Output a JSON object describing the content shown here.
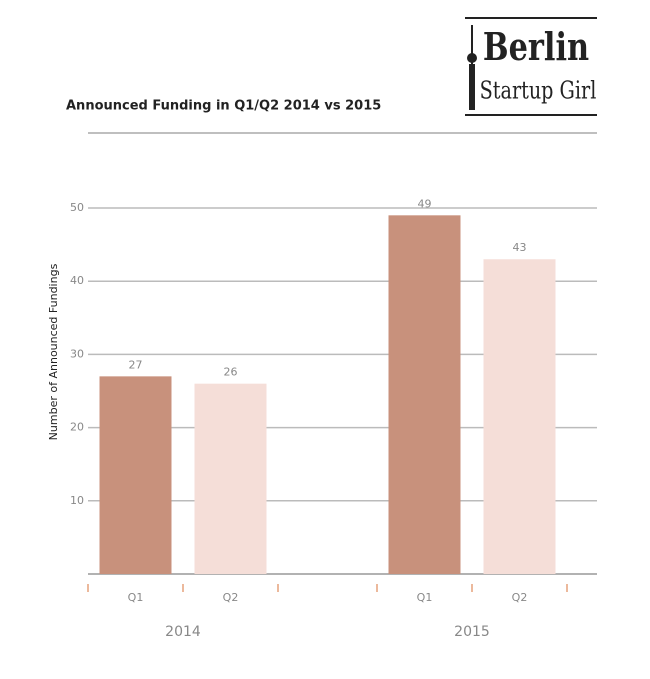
{
  "logo": {
    "line1": "Berlin",
    "line2": "Startup Girl"
  },
  "chart_data": {
    "type": "bar",
    "title": "Announced Funding in Q1/Q2 2014 vs 2015",
    "y_label": "Number of Announced Fundings",
    "categories": [
      "2014",
      "2015"
    ],
    "series": [
      {
        "name": "Q1",
        "color": "#c8917c",
        "values": [
          27,
          49
        ]
      },
      {
        "name": "Q2",
        "color": "#f5ded8",
        "values": [
          26,
          43
        ]
      }
    ],
    "ylim": [
      0,
      50
    ],
    "yticks": [
      10,
      20,
      30,
      40,
      50
    ],
    "grid": true
  }
}
